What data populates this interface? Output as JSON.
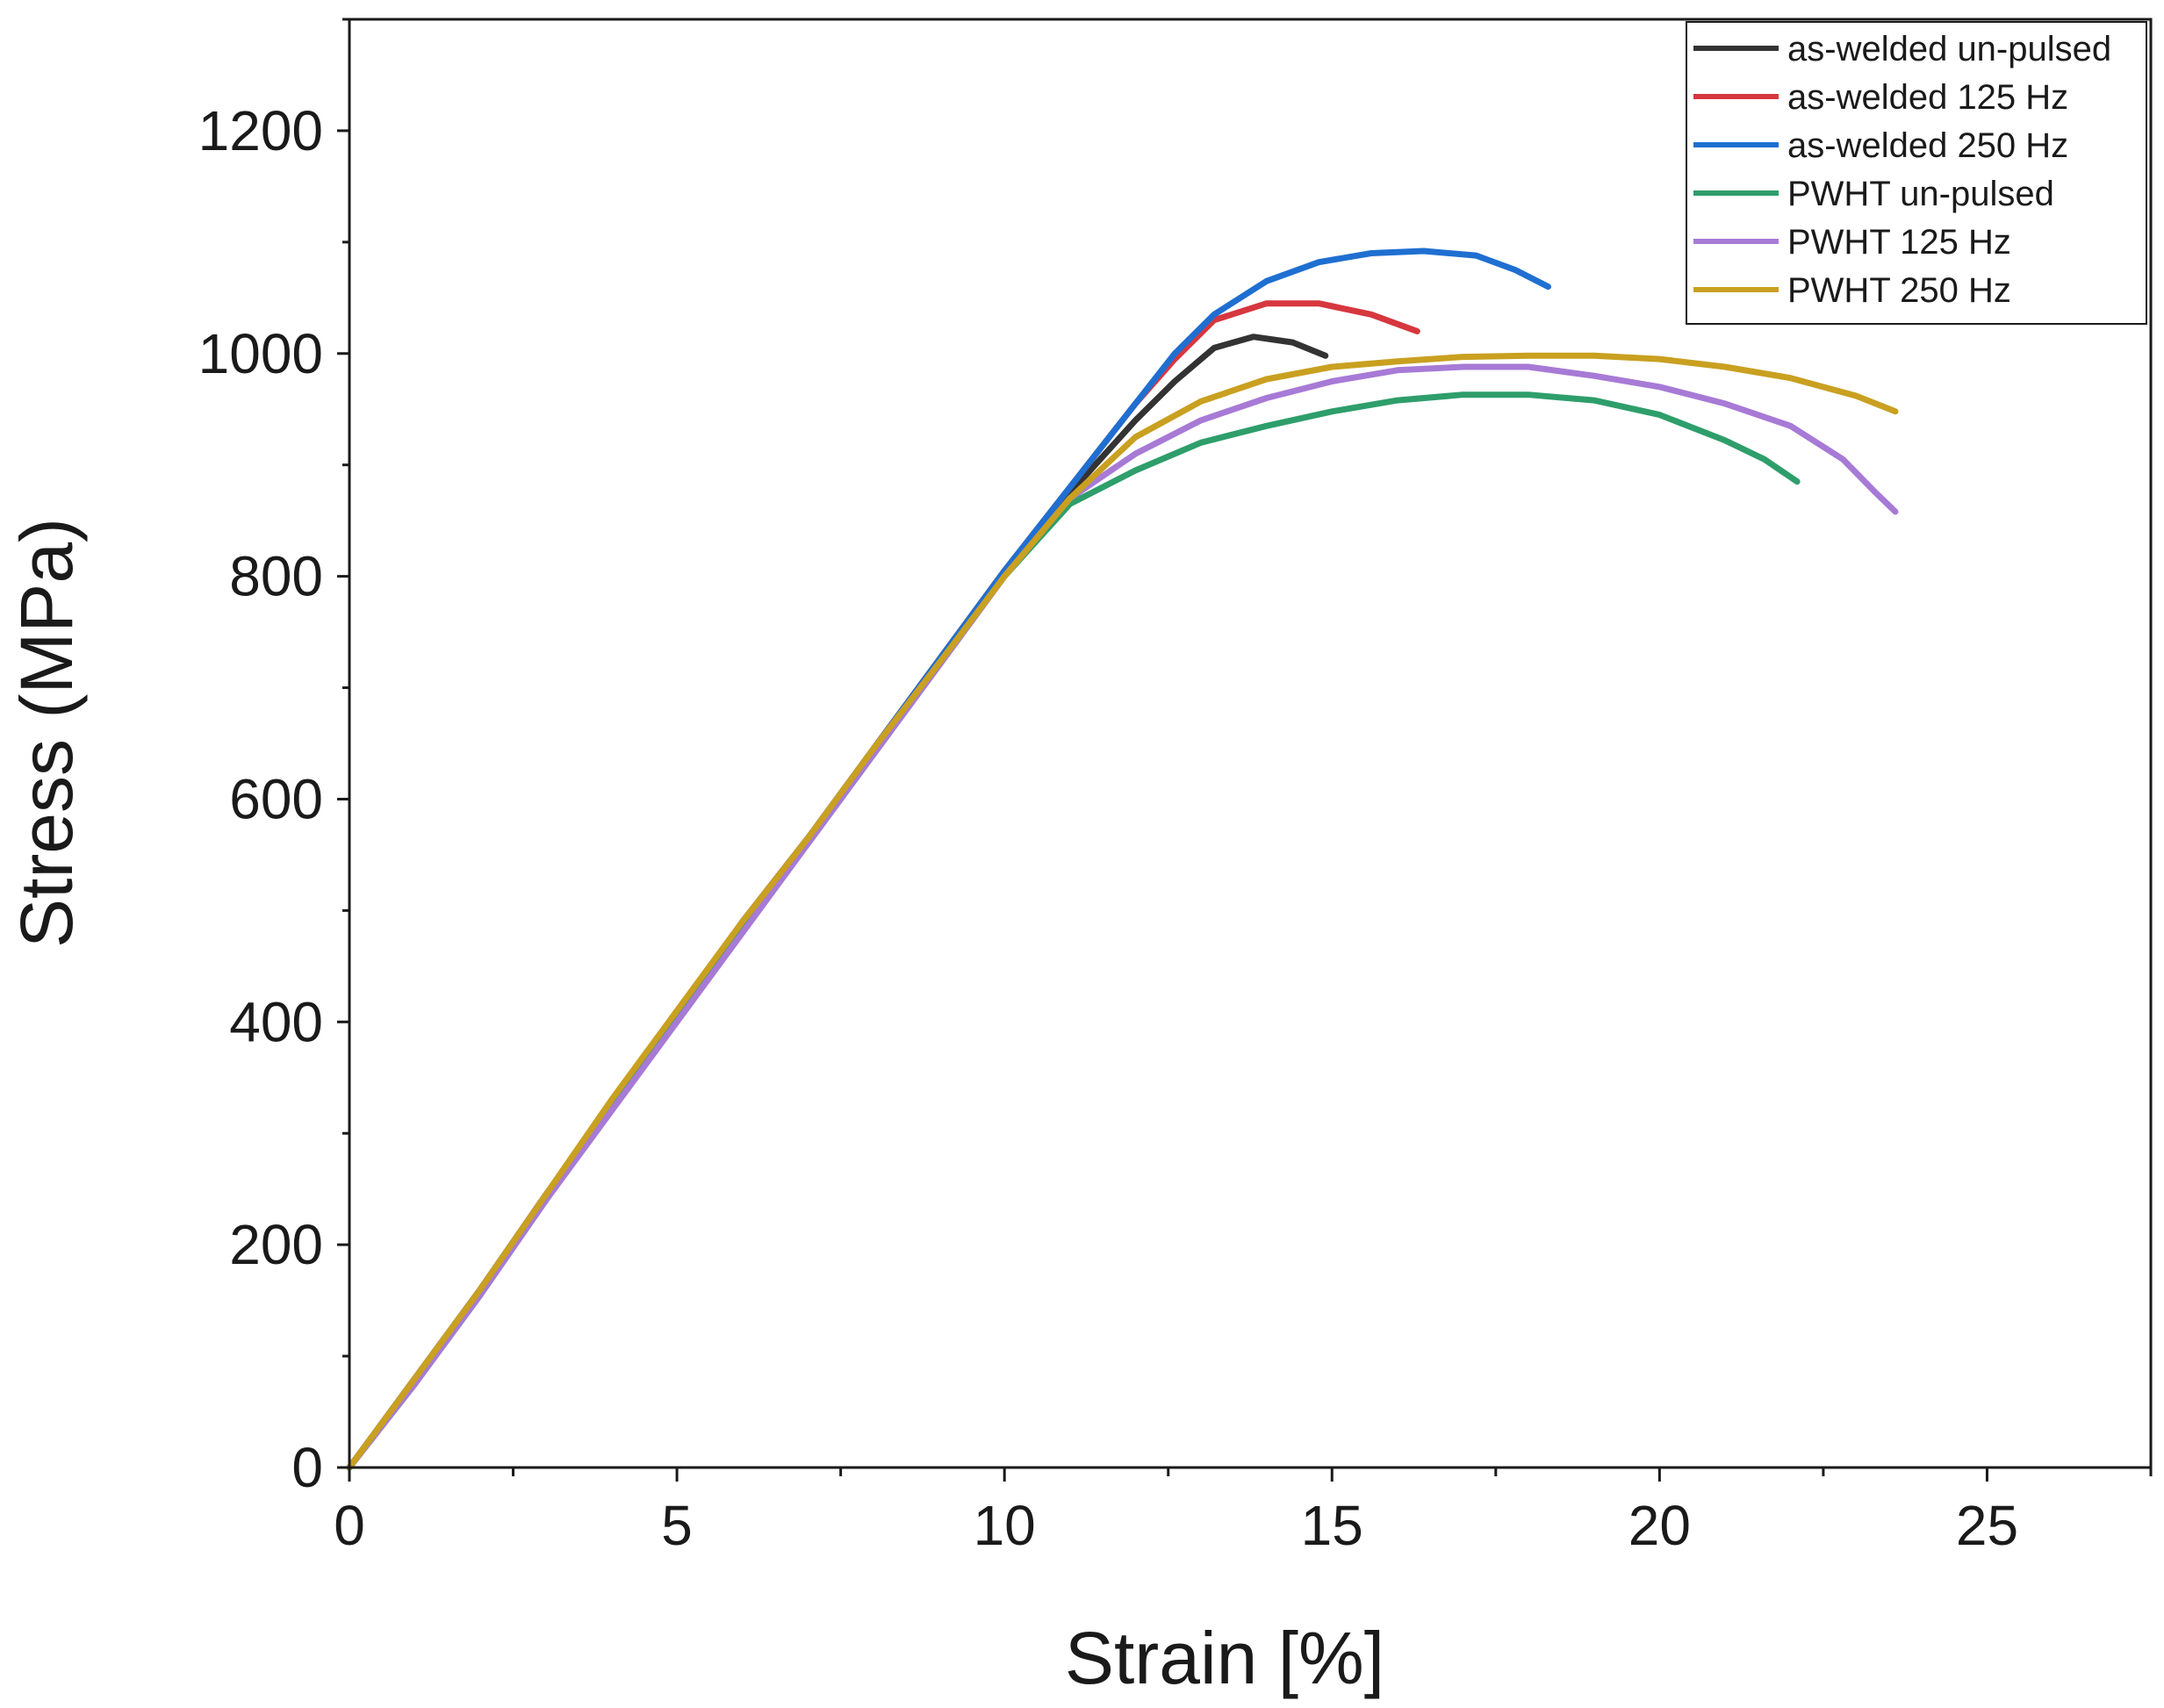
{
  "chart_data": {
    "type": "line",
    "title": "",
    "xlabel": "Strain [%]",
    "ylabel": "Stress (MPa)",
    "xlim": [
      0,
      27.5
    ],
    "ylim": [
      0,
      1300
    ],
    "x_ticks": [
      0,
      5,
      10,
      15,
      20,
      25
    ],
    "x_tick_labels": [
      "0",
      "5",
      "10",
      "15",
      "20",
      "25"
    ],
    "y_ticks": [
      0,
      200,
      400,
      600,
      800,
      1000,
      1200
    ],
    "y_tick_labels": [
      "0",
      "200",
      "400",
      "600",
      "800",
      "1000",
      "1200"
    ],
    "x_minor_step": 2.5,
    "y_minor_step": 100,
    "grid": false,
    "legend_position": "top-right",
    "series": [
      {
        "name": "as-welded un-pulsed",
        "color": "#333333",
        "points": [
          [
            0,
            0
          ],
          [
            1,
            80
          ],
          [
            2,
            160
          ],
          [
            3,
            245
          ],
          [
            4,
            325
          ],
          [
            5,
            405
          ],
          [
            6,
            490
          ],
          [
            7,
            565
          ],
          [
            8,
            645
          ],
          [
            9,
            725
          ],
          [
            10,
            805
          ],
          [
            11,
            875
          ],
          [
            12,
            940
          ],
          [
            12.6,
            975
          ],
          [
            13.2,
            1005
          ],
          [
            13.8,
            1015
          ],
          [
            14.4,
            1010
          ],
          [
            14.9,
            998
          ]
        ]
      },
      {
        "name": "as-welded 125 Hz",
        "color": "#d7373f",
        "points": [
          [
            0,
            0
          ],
          [
            1,
            80
          ],
          [
            2,
            160
          ],
          [
            3,
            245
          ],
          [
            4,
            325
          ],
          [
            5,
            405
          ],
          [
            6,
            490
          ],
          [
            7,
            565
          ],
          [
            8,
            645
          ],
          [
            9,
            725
          ],
          [
            10,
            805
          ],
          [
            11,
            880
          ],
          [
            12,
            955
          ],
          [
            12.6,
            995
          ],
          [
            13.2,
            1030
          ],
          [
            14,
            1045
          ],
          [
            14.8,
            1045
          ],
          [
            15.6,
            1035
          ],
          [
            16.3,
            1020
          ]
        ]
      },
      {
        "name": "as-welded 250 Hz",
        "color": "#1f6fd1",
        "points": [
          [
            0,
            0
          ],
          [
            1,
            80
          ],
          [
            2,
            160
          ],
          [
            3,
            245
          ],
          [
            4,
            325
          ],
          [
            5,
            405
          ],
          [
            6,
            490
          ],
          [
            7,
            565
          ],
          [
            8,
            645
          ],
          [
            9,
            725
          ],
          [
            10,
            805
          ],
          [
            11,
            880
          ],
          [
            12,
            955
          ],
          [
            12.6,
            1000
          ],
          [
            13.2,
            1035
          ],
          [
            14,
            1065
          ],
          [
            14.8,
            1082
          ],
          [
            15.6,
            1090
          ],
          [
            16.4,
            1092
          ],
          [
            17.2,
            1088
          ],
          [
            17.8,
            1075
          ],
          [
            18.3,
            1060
          ]
        ]
      },
      {
        "name": "PWHT un-pulsed",
        "color": "#2e9e6b",
        "points": [
          [
            0,
            0
          ],
          [
            1,
            75
          ],
          [
            2,
            155
          ],
          [
            3,
            240
          ],
          [
            4,
            325
          ],
          [
            5,
            405
          ],
          [
            6,
            485
          ],
          [
            7,
            560
          ],
          [
            8,
            640
          ],
          [
            9,
            720
          ],
          [
            10,
            800
          ],
          [
            11,
            865
          ],
          [
            12,
            895
          ],
          [
            13,
            920
          ],
          [
            14,
            935
          ],
          [
            15,
            948
          ],
          [
            16,
            958
          ],
          [
            17,
            963
          ],
          [
            18,
            963
          ],
          [
            19,
            958
          ],
          [
            20,
            945
          ],
          [
            21,
            922
          ],
          [
            21.6,
            905
          ],
          [
            22.1,
            885
          ]
        ]
      },
      {
        "name": "PWHT 125 Hz",
        "color": "#a77ad6",
        "points": [
          [
            0,
            0
          ],
          [
            1,
            75
          ],
          [
            2,
            155
          ],
          [
            3,
            240
          ],
          [
            4,
            320
          ],
          [
            5,
            400
          ],
          [
            6,
            480
          ],
          [
            7,
            560
          ],
          [
            8,
            640
          ],
          [
            9,
            720
          ],
          [
            10,
            800
          ],
          [
            11,
            870
          ],
          [
            12,
            910
          ],
          [
            13,
            940
          ],
          [
            14,
            960
          ],
          [
            15,
            975
          ],
          [
            16,
            985
          ],
          [
            17,
            988
          ],
          [
            18,
            988
          ],
          [
            19,
            980
          ],
          [
            20,
            970
          ],
          [
            21,
            955
          ],
          [
            22,
            935
          ],
          [
            22.8,
            905
          ],
          [
            23.3,
            875
          ],
          [
            23.6,
            858
          ]
        ]
      },
      {
        "name": "PWHT 250 Hz",
        "color": "#c9a020",
        "points": [
          [
            0,
            0
          ],
          [
            1,
            80
          ],
          [
            2,
            160
          ],
          [
            3,
            245
          ],
          [
            4,
            330
          ],
          [
            5,
            410
          ],
          [
            6,
            490
          ],
          [
            7,
            565
          ],
          [
            8,
            645
          ],
          [
            9,
            722
          ],
          [
            10,
            800
          ],
          [
            11,
            870
          ],
          [
            12,
            925
          ],
          [
            13,
            957
          ],
          [
            14,
            977
          ],
          [
            15,
            988
          ],
          [
            16,
            993
          ],
          [
            17,
            997
          ],
          [
            18,
            998
          ],
          [
            19,
            998
          ],
          [
            20,
            995
          ],
          [
            21,
            988
          ],
          [
            22,
            978
          ],
          [
            23,
            962
          ],
          [
            23.6,
            948
          ]
        ]
      }
    ]
  }
}
